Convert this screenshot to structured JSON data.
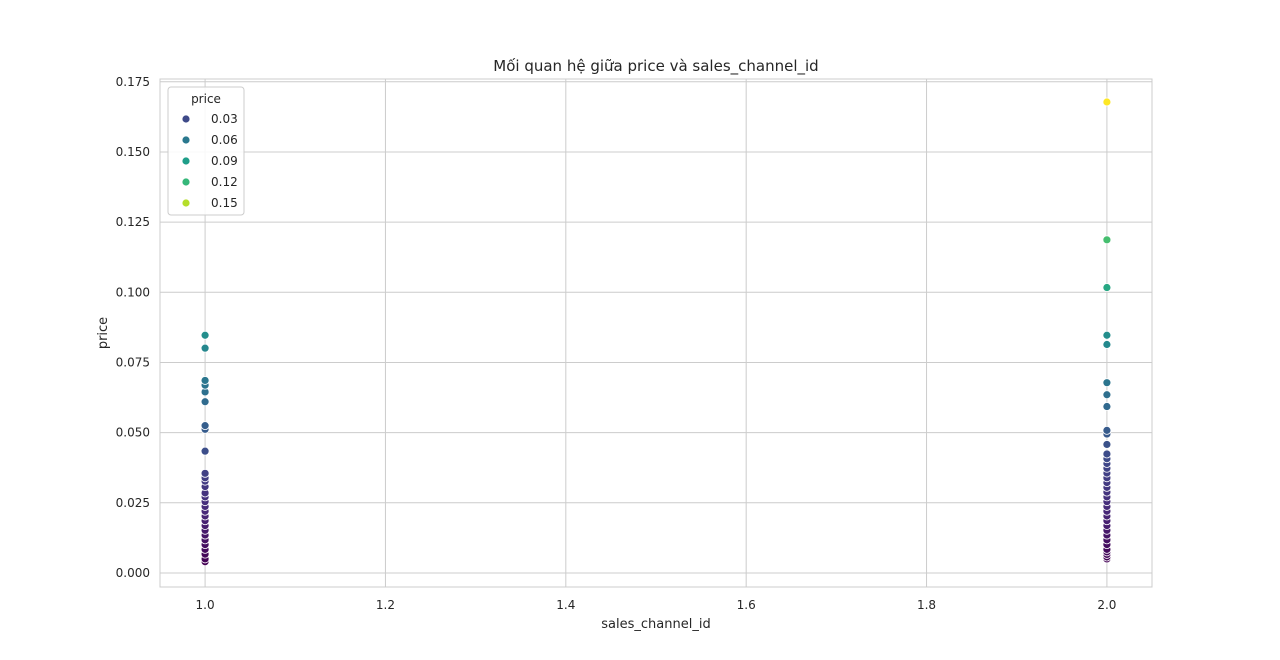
{
  "chart_data": {
    "type": "scatter",
    "title": "Mối quan hệ giữa price và sales_channel_id",
    "xlabel": "sales_channel_id",
    "ylabel": "price",
    "xlim": [
      0.95,
      2.05
    ],
    "ylim": [
      -0.005,
      0.176
    ],
    "xticks": [
      "1.0",
      "1.2",
      "1.4",
      "1.6",
      "1.8",
      "2.0"
    ],
    "yticks": [
      "0.000",
      "0.025",
      "0.050",
      "0.075",
      "0.100",
      "0.125",
      "0.150",
      "0.175"
    ],
    "grid": true,
    "colormap": "viridis",
    "hue": "price",
    "legend": {
      "title": "price",
      "placement": "top-left",
      "entries": [
        {
          "label": "0.03",
          "color": "#3e4a89"
        },
        {
          "label": "0.06",
          "color": "#2a788e"
        },
        {
          "label": "0.09",
          "color": "#1f9e89"
        },
        {
          "label": "0.12",
          "color": "#35b779"
        },
        {
          "label": "0.15",
          "color": "#b5de2b"
        }
      ]
    },
    "series": [
      {
        "x": 1.0,
        "values": [
          0.0847,
          0.0801,
          0.0686,
          0.0669,
          0.0645,
          0.061,
          0.0525,
          0.0512,
          0.0434,
          0.0355,
          0.0339,
          0.0327,
          0.0308,
          0.0285,
          0.0271,
          0.0254,
          0.0237,
          0.022,
          0.0203,
          0.0186,
          0.0169,
          0.0152,
          0.0135,
          0.0118,
          0.0101,
          0.0084,
          0.0067,
          0.005,
          0.004
        ]
      },
      {
        "x": 2.0,
        "values": [
          0.1678,
          0.1187,
          0.1017,
          0.0847,
          0.0814,
          0.0678,
          0.0635,
          0.0593,
          0.0508,
          0.0495,
          0.0458,
          0.0424,
          0.0407,
          0.039,
          0.0373,
          0.0356,
          0.0339,
          0.0322,
          0.0305,
          0.0288,
          0.0271,
          0.0254,
          0.0237,
          0.022,
          0.0203,
          0.0186,
          0.0169,
          0.0152,
          0.0135,
          0.0118,
          0.0101,
          0.0084,
          0.0075,
          0.0066,
          0.0057,
          0.005
        ]
      }
    ]
  }
}
